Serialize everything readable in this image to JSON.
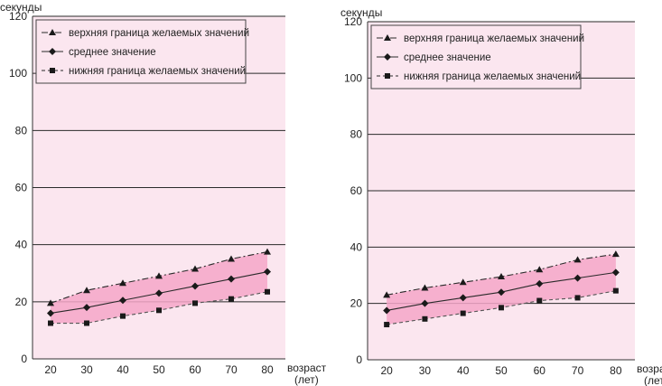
{
  "colors": {
    "plot_bg": "#fbe6ef",
    "band_fill": "#f4a6c8",
    "gridline": "#2a2a2a",
    "series_line": "#2a2a2a",
    "marker": "#1a1a1a",
    "lower_line": "#555555"
  },
  "chart_data": [
    {
      "type": "line",
      "ylabel": "секунды",
      "xlabel": [
        "возраст",
        "(лет)"
      ],
      "x": [
        20,
        30,
        40,
        50,
        60,
        70,
        80
      ],
      "x_ticks": [
        "20",
        "30",
        "40",
        "50",
        "60",
        "70",
        "80"
      ],
      "y_ticks": [
        "0",
        "20",
        "40",
        "60",
        "80",
        "100",
        "120"
      ],
      "ylim": [
        0,
        120
      ],
      "grid": "horizontal",
      "legend_position": "top-left",
      "shaded_band_between": [
        "верхняя граница желаемых значений",
        "нижняя граница желаемых значений"
      ],
      "series": [
        {
          "name": "верхняя граница желаемых значений",
          "marker": "triangle",
          "dash": "dash-dot",
          "values": [
            19.5,
            24,
            26.5,
            29,
            31.5,
            35,
            37.5
          ]
        },
        {
          "name": "среднее значение",
          "marker": "diamond",
          "dash": "solid",
          "values": [
            16,
            18,
            20.5,
            23,
            25.5,
            28,
            30.5
          ]
        },
        {
          "name": "нижняя граница желаемых значений",
          "marker": "square",
          "dash": "dashed",
          "values": [
            12.5,
            12.5,
            15,
            17,
            19.5,
            21,
            23.5
          ]
        }
      ]
    },
    {
      "type": "line",
      "ylabel": "секунды",
      "xlabel": [
        "возраст",
        "(лет)"
      ],
      "x": [
        20,
        30,
        40,
        50,
        60,
        70,
        80
      ],
      "x_ticks": [
        "20",
        "30",
        "40",
        "50",
        "60",
        "70",
        "80"
      ],
      "y_ticks": [
        "0",
        "20",
        "40",
        "60",
        "80",
        "100",
        "120"
      ],
      "ylim": [
        0,
        120
      ],
      "grid": "horizontal",
      "legend_position": "top-left",
      "shaded_band_between": [
        "верхняя граница желаемых значений",
        "нижняя граница желаемых значений"
      ],
      "series": [
        {
          "name": "верхняя граница желаемых значений",
          "marker": "triangle",
          "dash": "dash-dot",
          "values": [
            23,
            25.5,
            27.5,
            29.5,
            32,
            35.5,
            37.5
          ]
        },
        {
          "name": "среднее значение",
          "marker": "diamond",
          "dash": "solid",
          "values": [
            17.5,
            20,
            22,
            24,
            27,
            29,
            31
          ]
        },
        {
          "name": "нижняя граница желаемых значений",
          "marker": "square",
          "dash": "dashed",
          "values": [
            12.5,
            14.5,
            16.5,
            18.5,
            21,
            22,
            24.5
          ]
        }
      ]
    }
  ]
}
